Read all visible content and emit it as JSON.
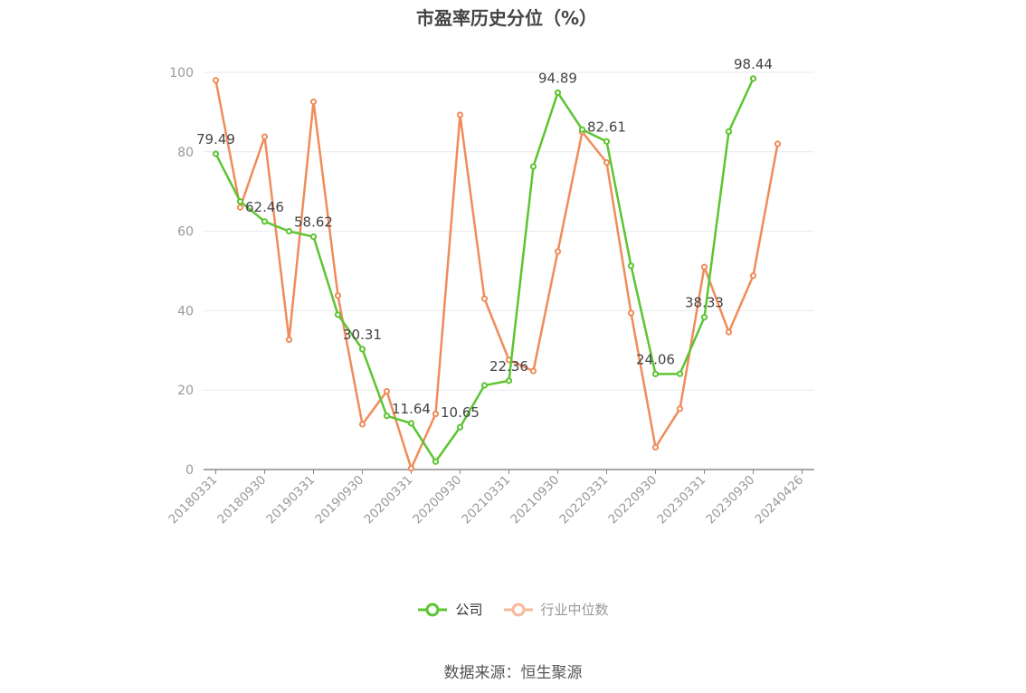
{
  "title": "市盈率历史分位（%）",
  "source": "数据来源：恒生聚源",
  "legend": {
    "company": "公司",
    "industry": "行业中位数"
  },
  "colors": {
    "company": "#5cc531",
    "industry": "#f08c5a",
    "industry_legend": "#f7b99a",
    "axis": "#888888",
    "grid": "#e6e9f0",
    "tick_text": "#999999",
    "label_text": "#444444"
  },
  "chart_data": {
    "type": "line",
    "title": "市盈率历史分位（%）",
    "xlabel": "",
    "ylabel": "",
    "ylim": [
      0,
      100
    ],
    "yticks": [
      0,
      20,
      40,
      60,
      80,
      100
    ],
    "grid": true,
    "legend_position": "bottom",
    "x": [
      "20180331",
      "20180630",
      "20180930",
      "20181231",
      "20190331",
      "20190630",
      "20190930",
      "20191231",
      "20200331",
      "20200630",
      "20200930",
      "20201231",
      "20210331",
      "20210630",
      "20210930",
      "20211231",
      "20220331",
      "20220630",
      "20220930",
      "20221231",
      "20230331",
      "20230630",
      "20230930",
      "20231231",
      "20240426"
    ],
    "xtick_labels": [
      "20180331",
      "20180930",
      "20190331",
      "20190930",
      "20200331",
      "20200930",
      "20210331",
      "20210930",
      "20220331",
      "20220930",
      "20230331",
      "20230930",
      "20240426"
    ],
    "series": [
      {
        "name": "公司",
        "values": [
          79.49,
          67.5,
          62.46,
          60.0,
          58.62,
          39.0,
          30.31,
          13.5,
          11.64,
          2.0,
          10.65,
          21.2,
          22.36,
          76.3,
          94.89,
          85.6,
          82.61,
          51.3,
          24.06,
          24.1,
          38.33,
          85.1,
          98.44,
          null,
          null
        ],
        "labels": {
          "0": "79.49",
          "2": "62.46",
          "4": "58.62",
          "6": "30.31",
          "8": "11.64",
          "10": "10.65",
          "12": "22.36",
          "14": "94.89",
          "16": "82.61",
          "18": "24.06",
          "20": "38.33",
          "22": "98.44"
        }
      },
      {
        "name": "行业中位数",
        "values": [
          98.0,
          66.0,
          83.8,
          32.7,
          92.6,
          43.8,
          11.4,
          19.7,
          0.3,
          14.0,
          89.3,
          43.0,
          27.6,
          24.8,
          54.9,
          85.0,
          77.3,
          39.4,
          5.6,
          15.3,
          51.0,
          34.6,
          48.8,
          82.0,
          null
        ]
      }
    ]
  }
}
